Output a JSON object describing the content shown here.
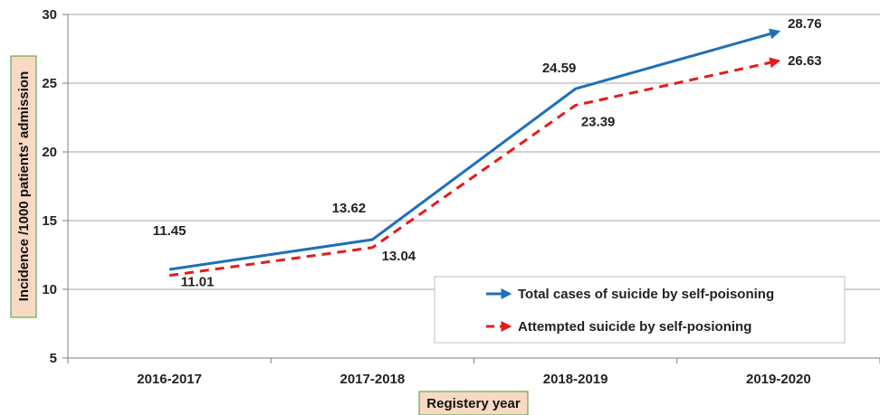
{
  "chart_data": {
    "type": "line",
    "categories": [
      "2016-2017",
      "2017-2018",
      "2018-2019",
      "2019-2020"
    ],
    "series": [
      {
        "name": "Total cases of suicide by self-poisoning",
        "values": [
          11.45,
          13.62,
          24.59,
          28.76
        ],
        "color": "#1f6fb8",
        "style": "solid"
      },
      {
        "name": "Attempted suicide by self-posioning",
        "values": [
          11.01,
          13.04,
          23.39,
          26.63
        ],
        "color": "#e31b1b",
        "style": "dashed"
      }
    ],
    "xlabel": "Registery year",
    "ylabel": "Incidence /1000 patients' admission",
    "ylim": [
      5,
      30
    ],
    "yticks": [
      5,
      10,
      15,
      20,
      25,
      30
    ],
    "grid": true,
    "legend_position": "lower-right",
    "axis_title_background": "#f8d9c3",
    "axis_title_border": "#6aa84f"
  }
}
